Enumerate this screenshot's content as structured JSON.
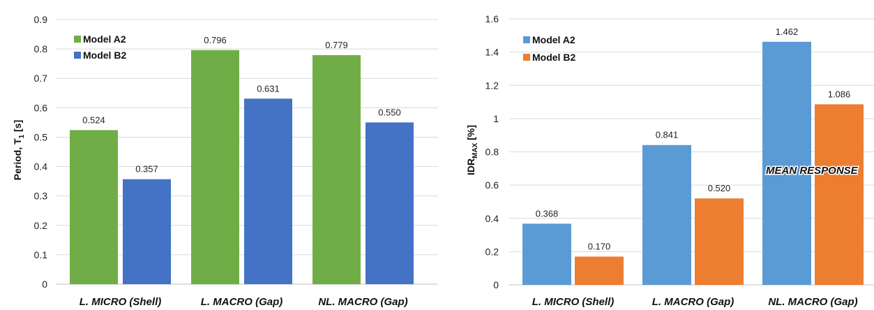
{
  "chart_data": [
    {
      "type": "bar",
      "categories": [
        "L. MICRO (Shell)",
        "L. MACRO (Gap)",
        "NL. MACRO (Gap)"
      ],
      "series": [
        {
          "name": "Model A2",
          "values": [
            0.524,
            0.796,
            0.779
          ],
          "labels": [
            "0.524",
            "0.796",
            "0.779"
          ],
          "color": "#70ad47"
        },
        {
          "name": "Model B2",
          "values": [
            0.357,
            0.631,
            0.55
          ],
          "labels": [
            "0.357",
            "0.631",
            "0.550"
          ],
          "color": "#4472c4"
        }
      ],
      "ylabel_main": "Period, T",
      "ylabel_sub": "1",
      "ylabel_tail": " [s]",
      "ylim": [
        0,
        0.9
      ],
      "yticks": [
        "0",
        "0.1",
        "0.2",
        "0.3",
        "0.4",
        "0.5",
        "0.6",
        "0.7",
        "0.8",
        "0.9"
      ],
      "grid": true,
      "legend": "top-left"
    },
    {
      "type": "bar",
      "categories": [
        "L. MICRO (Shell)",
        "L. MACRO (Gap)",
        "NL. MACRO (Gap)"
      ],
      "series": [
        {
          "name": "Model A2",
          "values": [
            0.368,
            0.841,
            1.462
          ],
          "labels": [
            "0.368",
            "0.841",
            "1.462"
          ],
          "color": "#5b9bd5"
        },
        {
          "name": "Model B2",
          "values": [
            0.17,
            0.52,
            1.086
          ],
          "labels": [
            "0.170",
            "0.520",
            "1.086"
          ],
          "color": "#ed7d31"
        }
      ],
      "ylabel_main": "IDR",
      "ylabel_sub": "MAX",
      "ylabel_tail": " [%]",
      "ylim": [
        0,
        1.6
      ],
      "yticks": [
        "0",
        "0.2",
        "0.4",
        "0.6",
        "0.8",
        "1",
        "1.2",
        "1.4",
        "1.6"
      ],
      "grid": true,
      "legend": "top-left",
      "annotation": "MEAN RESPONSE"
    }
  ]
}
